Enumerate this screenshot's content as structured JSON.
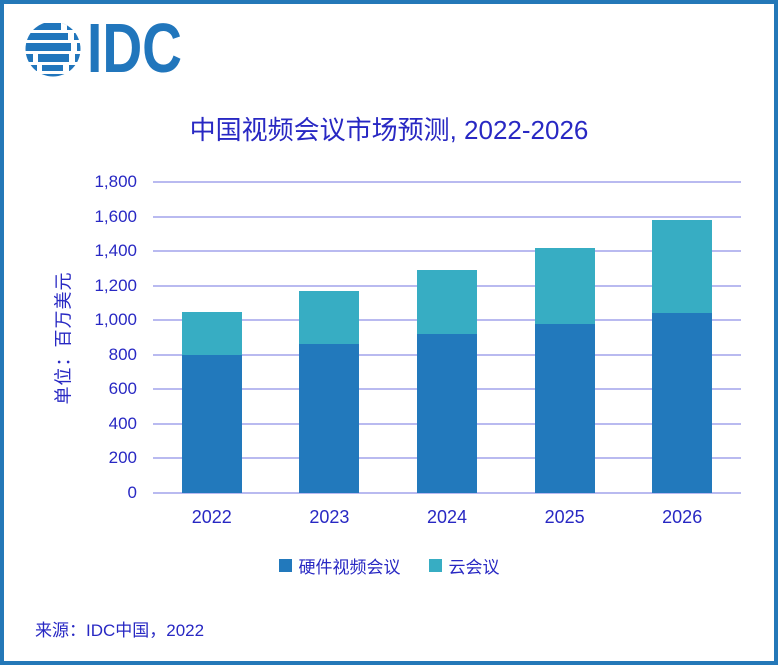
{
  "logo": {
    "text": "IDC"
  },
  "source": "来源：IDC中国，2022",
  "colors": {
    "border": "#2478B8",
    "text": "#2828C3",
    "grid": "#B9BAF0",
    "logo": "#2176BC",
    "hardware_bar": "#2279BC",
    "cloud_bar": "#37ADC3"
  },
  "chart_data": {
    "type": "bar",
    "stacked": true,
    "title": "中国视频会议市场预测, 2022-2026",
    "ylabel": "单位：百万美元",
    "categories": [
      "2022",
      "2023",
      "2024",
      "2025",
      "2026"
    ],
    "series": [
      {
        "name": "硬件视频会议",
        "color": "#2279BC",
        "values": [
          800,
          860,
          920,
          980,
          1040
        ]
      },
      {
        "name": "云会议",
        "color": "#37ADC3",
        "values": [
          250,
          310,
          370,
          440,
          540
        ]
      }
    ],
    "totals": [
      1050,
      1170,
      1290,
      1420,
      1580
    ],
    "ylim": [
      0,
      1800
    ],
    "ytick_interval": 200,
    "ytick_labels": [
      "0",
      "200",
      "400",
      "600",
      "800",
      "1,000",
      "1,200",
      "1,400",
      "1,600",
      "1,800"
    ],
    "grid": true,
    "legend_position": "bottom"
  }
}
